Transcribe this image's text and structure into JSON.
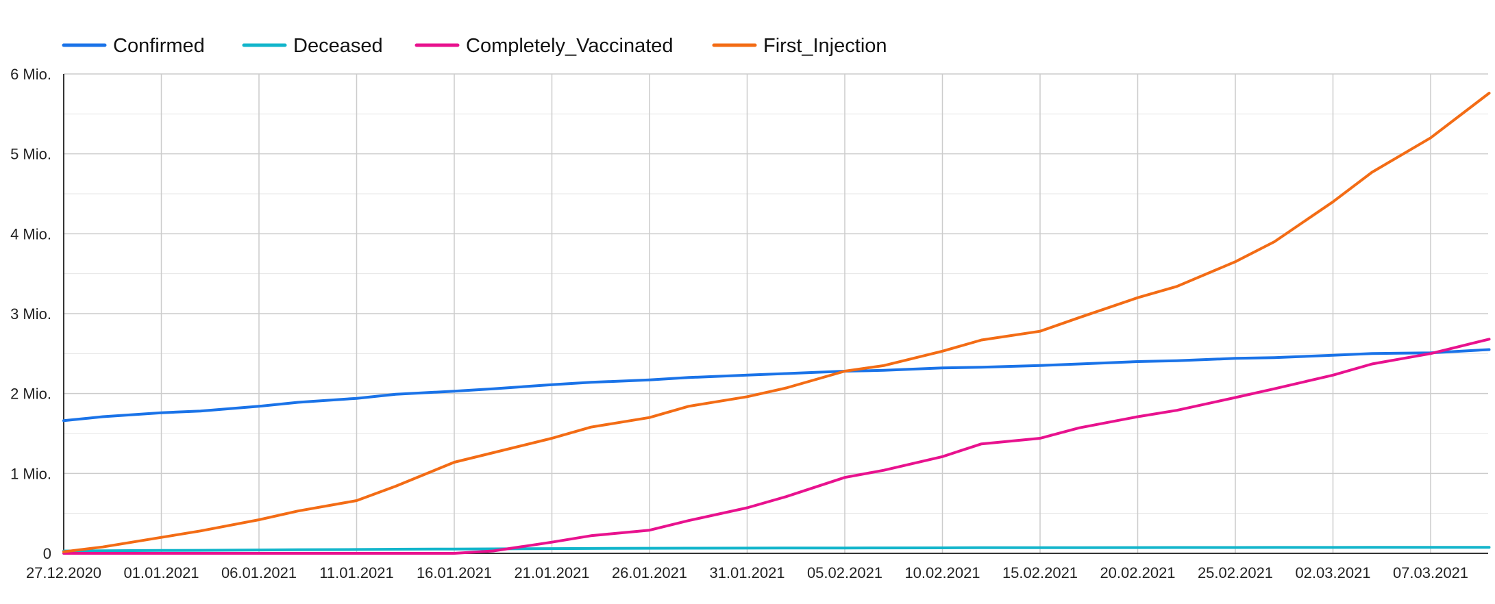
{
  "chart_data": {
    "type": "line",
    "title": "",
    "xlabel": "",
    "ylabel": "",
    "ylim": [
      0,
      6000000
    ],
    "grid": true,
    "legend_position": "top-left",
    "y_ticks": [
      {
        "value": 0,
        "label": "0"
      },
      {
        "value": 1000000,
        "label": "1 Mio."
      },
      {
        "value": 2000000,
        "label": "2 Mio."
      },
      {
        "value": 3000000,
        "label": "3 Mio."
      },
      {
        "value": 4000000,
        "label": "4 Mio."
      },
      {
        "value": 5000000,
        "label": "5 Mio."
      },
      {
        "value": 6000000,
        "label": "6 Mio."
      }
    ],
    "x_ticks": [
      "27.12.2020",
      "01.01.2021",
      "06.01.2021",
      "11.01.2021",
      "16.01.2021",
      "21.01.2021",
      "26.01.2021",
      "31.01.2021",
      "05.02.2021",
      "10.02.2021",
      "15.02.2021",
      "20.02.2021",
      "25.02.2021",
      "02.03.2021",
      "07.03.2021"
    ],
    "x": [
      "27.12.2020",
      "29.12.2020",
      "01.01.2021",
      "03.01.2021",
      "06.01.2021",
      "08.01.2021",
      "11.01.2021",
      "13.01.2021",
      "16.01.2021",
      "18.01.2021",
      "21.01.2021",
      "23.01.2021",
      "26.01.2021",
      "28.01.2021",
      "31.01.2021",
      "02.02.2021",
      "05.02.2021",
      "07.02.2021",
      "10.02.2021",
      "12.02.2021",
      "15.02.2021",
      "17.02.2021",
      "20.02.2021",
      "22.02.2021",
      "25.02.2021",
      "27.02.2021",
      "02.03.2021",
      "04.03.2021",
      "07.03.2021",
      "10.03.2021"
    ],
    "series": [
      {
        "name": "Confirmed",
        "color": "#1a73e8",
        "values": [
          1660000,
          1710000,
          1760000,
          1780000,
          1840000,
          1890000,
          1940000,
          1990000,
          2030000,
          2060000,
          2110000,
          2140000,
          2170000,
          2200000,
          2230000,
          2250000,
          2280000,
          2290000,
          2320000,
          2330000,
          2350000,
          2370000,
          2400000,
          2410000,
          2440000,
          2450000,
          2480000,
          2500000,
          2510000,
          2550000
        ]
      },
      {
        "name": "Deceased",
        "color": "#12b5cb",
        "values": [
          29000,
          32000,
          36000,
          38000,
          42000,
          45000,
          48000,
          51000,
          54000,
          56000,
          59000,
          61000,
          63000,
          64000,
          65000,
          66000,
          67000,
          68000,
          69000,
          70000,
          71000,
          71500,
          72000,
          72500,
          73000,
          73500,
          74000,
          74500,
          75000,
          75500
        ]
      },
      {
        "name": "Completely_Vaccinated",
        "color": "#e8128e",
        "values": [
          0,
          0,
          0,
          0,
          0,
          0,
          0,
          0,
          0,
          30000,
          140000,
          220000,
          290000,
          410000,
          570000,
          710000,
          950000,
          1040000,
          1210000,
          1370000,
          1440000,
          1570000,
          1710000,
          1790000,
          1950000,
          2060000,
          2230000,
          2370000,
          2500000,
          2680000
        ]
      },
      {
        "name": "First_Injection",
        "color": "#f36c15",
        "values": [
          20000,
          80000,
          200000,
          280000,
          420000,
          530000,
          660000,
          840000,
          1140000,
          1260000,
          1440000,
          1580000,
          1700000,
          1840000,
          1960000,
          2070000,
          2280000,
          2350000,
          2530000,
          2670000,
          2780000,
          2950000,
          3200000,
          3340000,
          3650000,
          3900000,
          4400000,
          4770000,
          5200000,
          5760000
        ]
      }
    ]
  }
}
